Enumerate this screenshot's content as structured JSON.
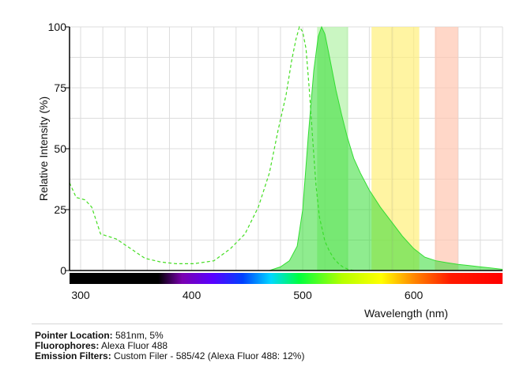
{
  "chart_data": {
    "type": "area",
    "xlabel": "Wavelength (nm)",
    "ylabel": "Relative Intensity (%)",
    "xlim": [
      290,
      680
    ],
    "ylim": [
      0,
      100
    ],
    "x_ticks": [
      300,
      400,
      500,
      600
    ],
    "y_ticks": [
      0,
      25,
      50,
      75,
      100
    ],
    "grid": true,
    "series": [
      {
        "style": "dashed",
        "color": "#44dd22",
        "x": [
          290,
          296,
          304,
          310,
          318,
          332,
          345,
          358,
          372,
          386,
          402,
          420,
          435,
          448,
          460,
          470,
          478,
          485,
          490,
          494,
          497,
          500,
          503,
          506,
          509,
          512,
          515,
          520,
          524,
          528,
          532,
          536,
          541,
          546
        ],
        "y": [
          36,
          30,
          29,
          26,
          15,
          13,
          9,
          5,
          3.5,
          2.8,
          2.8,
          4,
          9,
          15,
          26,
          40,
          58,
          72,
          86,
          95,
          100,
          98,
          91,
          74,
          54,
          35,
          22,
          12,
          8,
          5,
          3,
          1.5,
          0.5,
          0
        ]
      },
      {
        "style": "filled",
        "color": "#33dd33",
        "x": [
          470,
          480,
          488,
          495,
          500,
          505,
          510,
          514,
          517,
          520,
          524,
          530,
          535,
          540,
          546,
          552,
          560,
          570,
          580,
          590,
          600,
          610,
          620,
          630,
          640,
          650,
          660,
          670,
          680
        ],
        "y": [
          0,
          1.5,
          4,
          10,
          25,
          55,
          82,
          96,
          100,
          97,
          88,
          74,
          64,
          55,
          46,
          40,
          33,
          26,
          20,
          14,
          9,
          5.5,
          4,
          3.2,
          2.5,
          2,
          1.5,
          1,
          0.5
        ]
      }
    ],
    "bands": [
      {
        "from": 513,
        "to": 541,
        "color": "#b3f2a8"
      },
      {
        "from": 562,
        "to": 605,
        "color": "#fff07a"
      },
      {
        "from": 619,
        "to": 640,
        "color": "#ffc6b0"
      }
    ],
    "pointer_line_x": 581
  },
  "info": {
    "pointer_label": "Pointer Location:",
    "pointer_value": " 581nm, 5%",
    "fluor_label": "Fluorophores:",
    "fluor_value": " Alexa Fluor 488",
    "filter_label": "Emission Filters:",
    "filter_value": " Custom Filer - 585/42 (Alexa Fluor 488: 12%)"
  }
}
